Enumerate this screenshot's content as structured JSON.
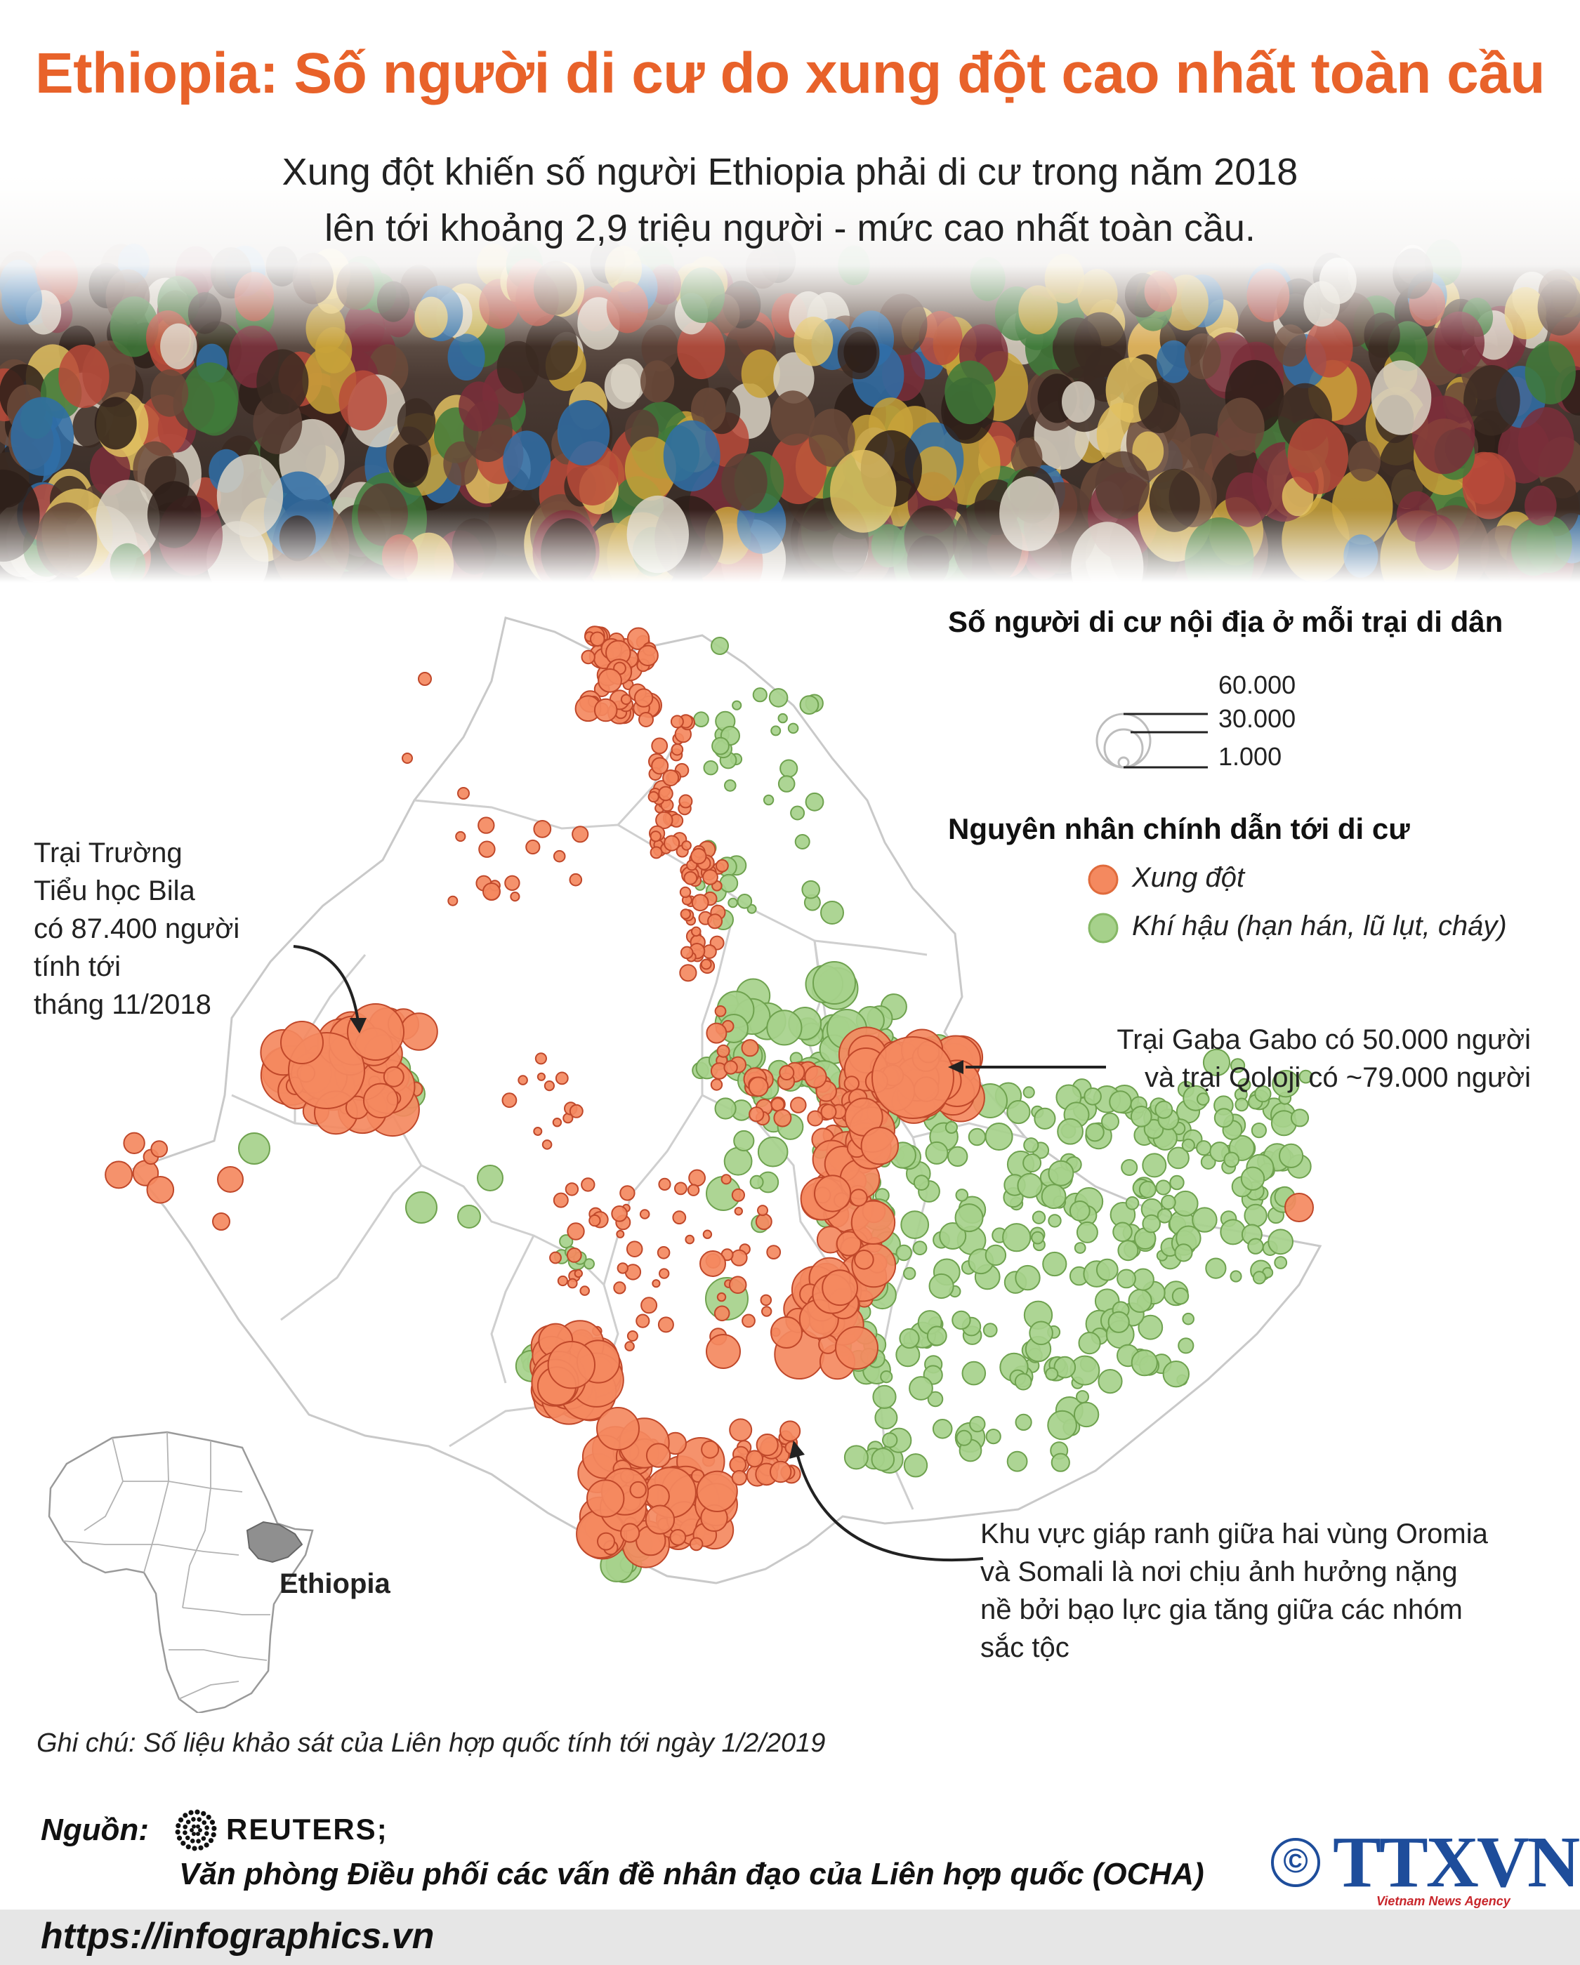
{
  "title": "Ethiopia: Số người di cư do xung đột cao nhất toàn cầu",
  "subtitle_lines": [
    "Xung đột khiến số người Ethiopia phải di cư trong năm 2018",
    "lên tới khoảng 2,9 triệu người - mức cao nhất toàn cầu."
  ],
  "legend": {
    "size_title": "Số người di cư nội địa ở mỗi trại di dân",
    "size_values": [
      "60.000",
      "30.000",
      "1.000"
    ],
    "cause_title": "Nguyên nhân chính dẫn tới di cư",
    "causes": [
      {
        "label": "Xung đột",
        "color": "#f4895f"
      },
      {
        "label": "Khí hậu (hạn hán, lũ lụt, cháy)",
        "color": "#a6d18b"
      }
    ]
  },
  "annotations": {
    "bila": [
      "Trại Trường",
      "Tiểu học Bila",
      "có 87.400 người",
      "tính tới",
      "tháng 11/2018"
    ],
    "gaba": [
      "Trại Gaba Gabo có 50.000 người",
      "và trại Qoloji có ~79.000 người"
    ],
    "oromia": [
      "Khu vực giáp ranh giữa hai vùng Oromia",
      "và Somali là nơi chịu ảnh hưởng nặng",
      "nề bởi bạo lực gia tăng giữa các nhóm",
      "sắc tộc"
    ]
  },
  "inset_label": "Ethiopia",
  "note": "Ghi chú: Số liệu khảo sát của Liên hợp quốc tính tới ngày 1/2/2019",
  "source_label": "Nguồn:",
  "source_reuters": "REUTERS;",
  "source_ocha": "Văn phòng Điều phối các vấn đề nhân đạo của Liên hợp quốc (OCHA)",
  "website": "https://infographics.vn",
  "logo_text": "TTXVN",
  "logo_sub": "Vietnam News Agency",
  "copyright": "©",
  "colors": {
    "title": "#e8622a",
    "conflict": "#f4895f",
    "climate": "#a6d18b"
  }
}
